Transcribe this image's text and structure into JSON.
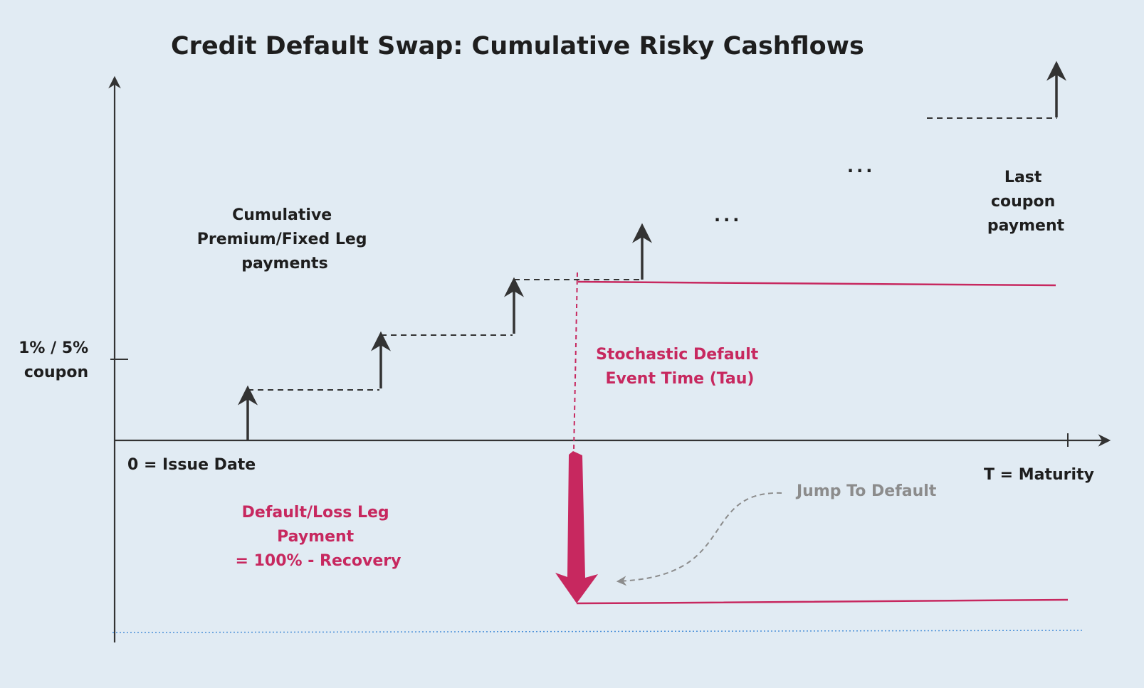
{
  "title": "Credit Default Swap: Cumulative Risky Cashflows",
  "y_axis_label": [
    "1% / 5%",
    "coupon"
  ],
  "x_axis_labels": {
    "issue_date": "0 = Issue Date",
    "maturity": "T = Maturity"
  },
  "annotations": {
    "premium_leg": [
      "Cumulative",
      "Premium/Fixed Leg",
      "payments"
    ],
    "last_coupon": [
      "Last",
      "coupon",
      "payment"
    ],
    "stochastic_default": [
      "Stochastic Default",
      "Event Time (Tau)"
    ],
    "default_leg": [
      "Default/Loss Leg",
      "Payment",
      "= 100% - Recovery"
    ],
    "jump_to_default": "Jump To Default",
    "ellipsis_1": "...",
    "ellipsis_2": "..."
  },
  "colors": {
    "background": "#e1ebf3",
    "ink": "#333333",
    "accent": "#c7285f",
    "annotation_grey": "#8c8c8c",
    "baseline_blue": "#4a90d9"
  }
}
